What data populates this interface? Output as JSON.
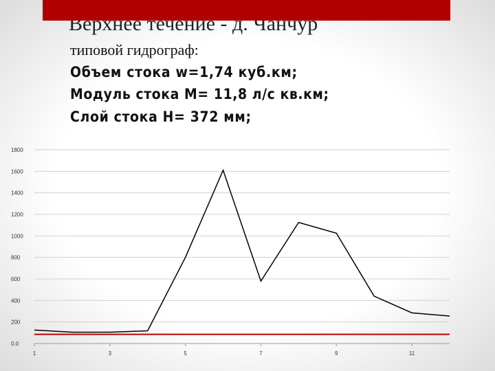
{
  "chart_data": {
    "type": "line",
    "title": "Верхнее течение - д. Чанчур",
    "subtitle": "типовой гидрограф:",
    "annotations": [
      "Объем стока w=1,74 куб.км;",
      "Модуль стока М= 11,8 л/с кв.км;",
      "Слой стока Н= 372 мм;"
    ],
    "x": [
      1,
      2,
      3,
      4,
      5,
      6,
      7,
      8,
      9,
      10,
      11,
      12
    ],
    "series": [
      {
        "color": "#000000",
        "values": [
          125,
          105,
          105,
          118,
          800,
          1610,
          580,
          1125,
          1025,
          440,
          285,
          255
        ]
      },
      {
        "color": "#c00000",
        "values": [
          85,
          85,
          85,
          85,
          85,
          85,
          85,
          85,
          85,
          85,
          85,
          85
        ]
      }
    ],
    "xlim": [
      1,
      12
    ],
    "xticks": [
      1,
      3,
      5,
      7,
      9,
      11
    ],
    "ylim": [
      0,
      1800
    ],
    "yticks": [
      {
        "value": 0,
        "label": "0.0"
      },
      200,
      400,
      600,
      800,
      1000,
      1200,
      1400,
      1600,
      1800
    ],
    "grid": true
  }
}
